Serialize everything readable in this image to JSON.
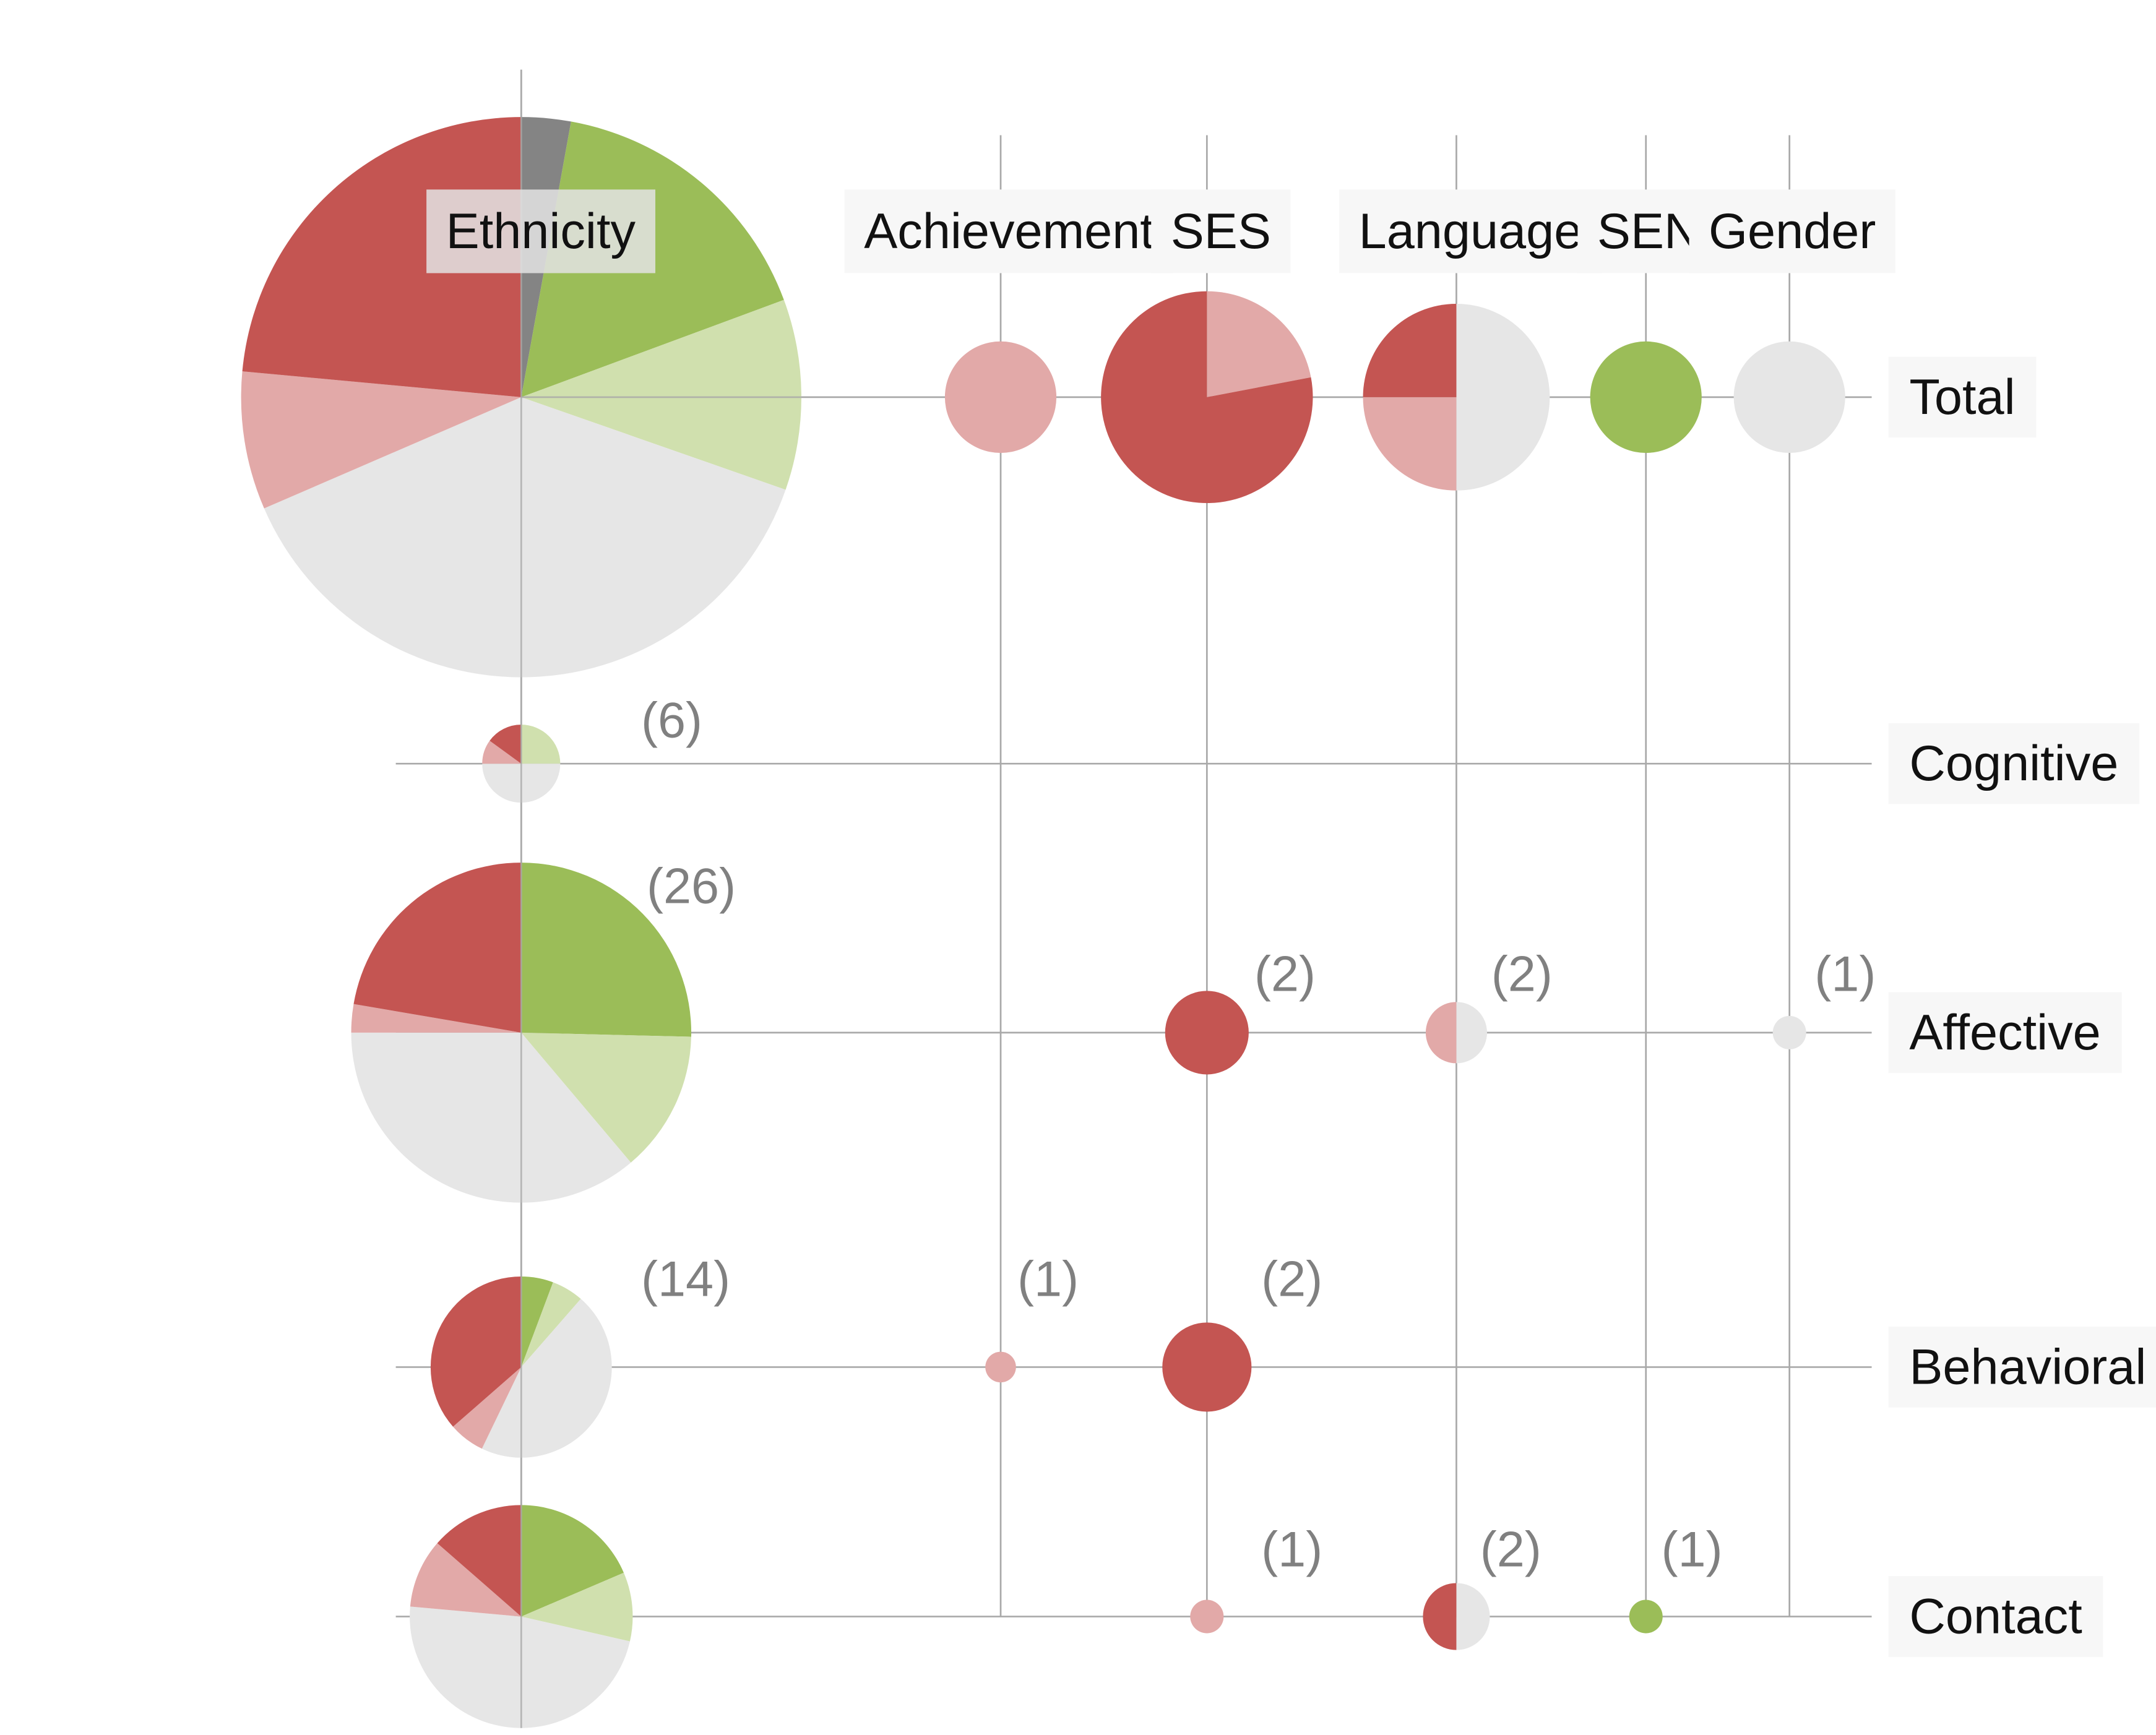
{
  "colors": {
    "red": "#c45552",
    "light-red": "#e2a9a8",
    "green": "#9bbd58",
    "light-green": "#d0e0ae",
    "gray": "#e6e6e6",
    "dark-gray": "#848484"
  },
  "chart_data": {
    "type": "pie-matrix",
    "columns": [
      "Ethnicity",
      "Achievement",
      "SES",
      "Language",
      "SEN",
      "Gender"
    ],
    "rows": [
      "Total",
      "Cognitive",
      "Affective",
      "Behavioral",
      "Contact"
    ],
    "cells": [
      {
        "row": "Total",
        "column": "Ethnicity",
        "count_label": "",
        "size": 49,
        "slices": [
          {
            "color": "dark-gray",
            "value": 1.5
          },
          {
            "color": "green",
            "value": 8.7
          },
          {
            "color": "light-green",
            "value": 5.8
          },
          {
            "color": "gray",
            "value": 20.1
          },
          {
            "color": "light-red",
            "value": 4.2
          },
          {
            "color": "red",
            "value": 12.4
          }
        ]
      },
      {
        "row": "Total",
        "column": "Achievement",
        "count_label": "",
        "size": 1,
        "slices": [
          {
            "color": "light-red",
            "value": 1
          }
        ]
      },
      {
        "row": "Total",
        "column": "SES",
        "count_label": "",
        "size": 5,
        "slices": [
          {
            "color": "light-red",
            "value": 1.1
          },
          {
            "color": "red",
            "value": 3.9
          }
        ]
      },
      {
        "row": "Total",
        "column": "Language",
        "count_label": "",
        "size": 4,
        "slices": [
          {
            "color": "gray",
            "value": 2
          },
          {
            "color": "light-red",
            "value": 1
          },
          {
            "color": "red",
            "value": 1
          }
        ]
      },
      {
        "row": "Total",
        "column": "SEN",
        "count_label": "",
        "size": 1,
        "slices": [
          {
            "color": "green",
            "value": 1
          }
        ]
      },
      {
        "row": "Total",
        "column": "Gender",
        "count_label": "",
        "size": 1,
        "slices": [
          {
            "color": "gray",
            "value": 1
          }
        ]
      },
      {
        "row": "Cognitive",
        "column": "Ethnicity",
        "count_label": "(6)",
        "size": 6,
        "slices": [
          {
            "color": "light-green",
            "value": 1.5
          },
          {
            "color": "gray",
            "value": 3
          },
          {
            "color": "light-red",
            "value": 0.6
          },
          {
            "color": "red",
            "value": 0.9
          }
        ]
      },
      {
        "row": "Affective",
        "column": "Ethnicity",
        "count_label": "(26)",
        "size": 26,
        "slices": [
          {
            "color": "green",
            "value": 6.6
          },
          {
            "color": "light-green",
            "value": 3.5
          },
          {
            "color": "gray",
            "value": 9.4
          },
          {
            "color": "light-red",
            "value": 0.7
          },
          {
            "color": "red",
            "value": 5.8
          }
        ]
      },
      {
        "row": "Affective",
        "column": "SES",
        "count_label": "(2)",
        "size": 2,
        "slices": [
          {
            "color": "red",
            "value": 2
          }
        ]
      },
      {
        "row": "Affective",
        "column": "Language",
        "count_label": "(2)",
        "size": 2,
        "slices": [
          {
            "color": "gray",
            "value": 1
          },
          {
            "color": "light-red",
            "value": 1
          }
        ]
      },
      {
        "row": "Affective",
        "column": "Gender",
        "count_label": "(1)",
        "size": 1,
        "slices": [
          {
            "color": "gray",
            "value": 1
          }
        ]
      },
      {
        "row": "Behavioral",
        "column": "Ethnicity",
        "count_label": "(14)",
        "size": 14,
        "slices": [
          {
            "color": "green",
            "value": 0.8
          },
          {
            "color": "light-green",
            "value": 0.8
          },
          {
            "color": "gray",
            "value": 6.4
          },
          {
            "color": "light-red",
            "value": 0.9
          },
          {
            "color": "red",
            "value": 5.1
          }
        ]
      },
      {
        "row": "Behavioral",
        "column": "Achievement",
        "count_label": "(1)",
        "size": 1,
        "slices": [
          {
            "color": "light-red",
            "value": 1
          }
        ]
      },
      {
        "row": "Behavioral",
        "column": "SES",
        "count_label": "(2)",
        "size": 2,
        "slices": [
          {
            "color": "red",
            "value": 2
          }
        ]
      },
      {
        "row": "Contact",
        "column": "Ethnicity",
        "count_label": "",
        "size": 14,
        "slices": [
          {
            "color": "green",
            "value": 2.6
          },
          {
            "color": "light-green",
            "value": 1.4
          },
          {
            "color": "gray",
            "value": 6.7
          },
          {
            "color": "light-red",
            "value": 1.4
          },
          {
            "color": "red",
            "value": 1.9
          }
        ]
      },
      {
        "row": "Contact",
        "column": "SES",
        "count_label": "(1)",
        "size": 1,
        "slices": [
          {
            "color": "light-red",
            "value": 1
          }
        ]
      },
      {
        "row": "Contact",
        "column": "Language",
        "count_label": "(2)",
        "size": 2,
        "slices": [
          {
            "color": "gray",
            "value": 1
          },
          {
            "color": "red",
            "value": 1
          }
        ]
      },
      {
        "row": "Contact",
        "column": "SEN",
        "count_label": "(1)",
        "size": 1,
        "slices": [
          {
            "color": "green",
            "value": 1
          }
        ]
      }
    ]
  }
}
